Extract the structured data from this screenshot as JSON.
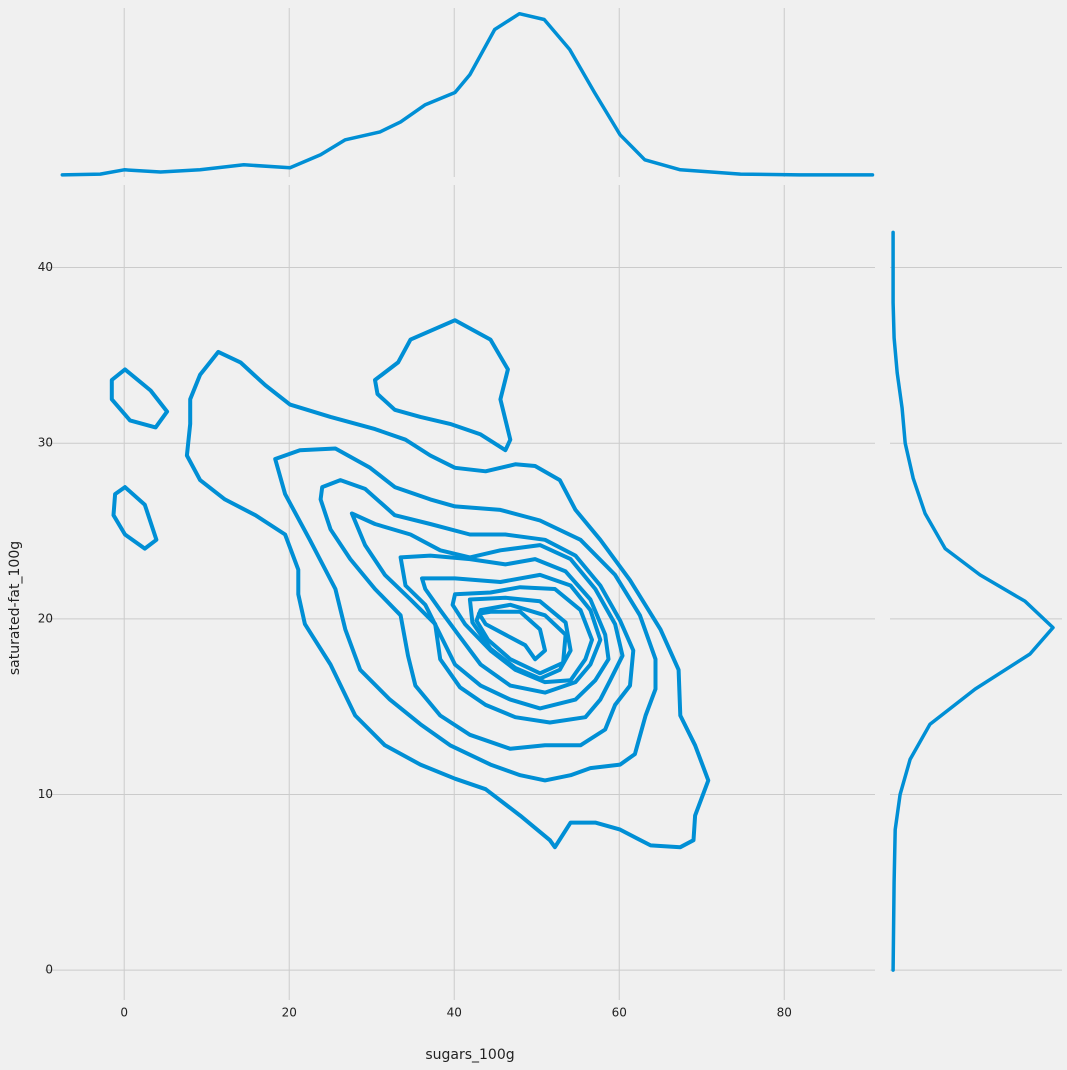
{
  "chart_data": {
    "type": "kde-joint",
    "color": "#008fd5",
    "grid": true,
    "x_label": "sugars_100g",
    "y_label": "saturated-fat_100g",
    "xlim": [
      -9.6,
      91.0
    ],
    "ylim": [
      -1.7,
      44.7
    ],
    "xticks": [
      0,
      20,
      40,
      60,
      80
    ],
    "yticks": [
      0,
      10,
      20,
      30,
      40
    ],
    "contours": [
      {
        "x": [
          8.0,
          8.0,
          9.2,
          11.4,
          14.1,
          17.1,
          20.1,
          25.0,
          30.4,
          34.1,
          37.1,
          40.1,
          43.8,
          47.4,
          49.8,
          52.8,
          54.7,
          57.7,
          61.3,
          65.0,
          67.2,
          67.4,
          69.2,
          70.8,
          69.2,
          69.0,
          67.4,
          63.8,
          60.1,
          57.1,
          54.1,
          52.2,
          51.6,
          48.0,
          43.8,
          40.1,
          35.9,
          31.6,
          28.0,
          25.0,
          21.9,
          21.1,
          21.1,
          19.5,
          15.9,
          12.2,
          9.2,
          7.6
        ],
        "y": [
          31.1,
          32.5,
          33.9,
          35.2,
          34.6,
          33.3,
          32.2,
          31.5,
          30.8,
          30.2,
          29.3,
          28.6,
          28.4,
          28.8,
          28.7,
          27.9,
          26.2,
          24.5,
          22.2,
          19.4,
          17.1,
          14.5,
          12.8,
          10.8,
          8.8,
          7.4,
          7.0,
          7.1,
          8.0,
          8.4,
          8.4,
          7.0,
          7.4,
          8.8,
          10.3,
          10.9,
          11.7,
          12.8,
          14.5,
          17.4,
          19.7,
          21.4,
          22.8,
          24.8,
          25.9,
          26.8,
          27.9,
          29.3
        ]
      },
      {
        "x": [
          18.3,
          21.3,
          25.6,
          29.8,
          32.8,
          37.1,
          40.1,
          45.6,
          50.4,
          55.3,
          59.5,
          62.5,
          64.4,
          64.4,
          63.2,
          61.9,
          60.1,
          56.5,
          54.1,
          51.0,
          48.0,
          44.4,
          39.5,
          35.9,
          32.2,
          28.6,
          26.8,
          25.6,
          22.5,
          19.5
        ],
        "y": [
          29.1,
          29.6,
          29.7,
          28.6,
          27.5,
          26.8,
          26.4,
          26.2,
          25.6,
          24.5,
          22.5,
          20.2,
          17.7,
          16.0,
          14.5,
          12.3,
          11.7,
          11.5,
          11.1,
          10.8,
          11.1,
          11.7,
          12.8,
          14.0,
          15.4,
          17.1,
          19.4,
          21.7,
          24.5,
          27.1
        ]
      },
      {
        "x": [
          24.0,
          26.2,
          29.2,
          32.8,
          37.1,
          41.9,
          46.2,
          51.0,
          54.7,
          57.7,
          60.1,
          61.7,
          61.3,
          59.5,
          58.3,
          55.3,
          51.0,
          46.8,
          41.9,
          38.3,
          35.3,
          34.4,
          33.5,
          30.4,
          27.4,
          25.0,
          23.8
        ],
        "y": [
          27.5,
          27.9,
          27.4,
          25.9,
          25.4,
          24.8,
          24.8,
          24.5,
          23.6,
          21.9,
          19.9,
          18.2,
          16.2,
          15.1,
          13.7,
          12.8,
          12.8,
          12.6,
          13.4,
          14.5,
          16.2,
          17.9,
          20.2,
          21.7,
          23.4,
          25.1,
          26.8
        ]
      },
      {
        "x": [
          27.6,
          30.4,
          34.7,
          38.3,
          41.9,
          45.6,
          50.4,
          54.1,
          57.1,
          59.5,
          60.4,
          58.9,
          57.7,
          55.9,
          51.6,
          47.4,
          43.8,
          40.7,
          38.3,
          37.7,
          34.7,
          31.6,
          29.2
        ],
        "y": [
          26.0,
          25.4,
          24.8,
          23.9,
          23.5,
          23.9,
          24.2,
          23.4,
          21.7,
          19.7,
          17.9,
          16.5,
          15.4,
          14.4,
          14.1,
          14.4,
          15.1,
          16.1,
          17.7,
          19.7,
          21.1,
          22.5,
          24.2
        ]
      },
      {
        "x": [
          33.5,
          37.1,
          41.9,
          46.2,
          49.8,
          53.5,
          56.5,
          58.3,
          58.7,
          57.1,
          54.7,
          50.4,
          46.8,
          43.2,
          40.1,
          38.3,
          36.5,
          34.1
        ],
        "y": [
          23.5,
          23.6,
          23.4,
          23.1,
          23.4,
          22.7,
          21.1,
          19.1,
          17.7,
          16.5,
          15.4,
          14.9,
          15.4,
          16.2,
          17.4,
          19.1,
          20.8,
          21.9
        ]
      },
      {
        "x": [
          36.1,
          40.1,
          45.6,
          50.4,
          54.1,
          56.5,
          57.7,
          56.5,
          54.7,
          51.0,
          46.8,
          43.2,
          40.5,
          38.3,
          36.5
        ],
        "y": [
          22.3,
          22.3,
          22.1,
          22.5,
          21.9,
          20.5,
          18.8,
          17.4,
          16.4,
          15.8,
          16.2,
          17.4,
          19.1,
          20.5,
          21.7
        ]
      },
      {
        "x": [
          40.1,
          44.4,
          48.0,
          52.2,
          55.3,
          56.7,
          55.9,
          54.1,
          51.0,
          47.4,
          44.4,
          41.3,
          39.8
        ],
        "y": [
          21.4,
          21.5,
          21.8,
          21.7,
          20.5,
          18.8,
          17.7,
          16.5,
          16.4,
          17.1,
          18.2,
          19.7,
          20.8
        ]
      },
      {
        "x": [
          41.9,
          46.2,
          50.4,
          53.5,
          54.1,
          52.8,
          50.4,
          47.4,
          44.4,
          42.2
        ],
        "y": [
          21.1,
          21.2,
          21.0,
          19.8,
          18.2,
          17.1,
          16.6,
          17.2,
          18.3,
          19.8
        ]
      },
      {
        "x": [
          43.2,
          46.8,
          51.0,
          53.5,
          53.2,
          50.4,
          46.8,
          44.1,
          42.7
        ],
        "y": [
          20.5,
          20.8,
          20.2,
          19.1,
          17.5,
          16.9,
          17.7,
          18.8,
          19.9
        ]
      },
      {
        "x": [
          44.4,
          48.0,
          50.4,
          51.0,
          49.8,
          48.6,
          46.2,
          43.8,
          43.0
        ],
        "y": [
          20.4,
          20.4,
          19.4,
          18.2,
          17.7,
          18.5,
          19.1,
          19.7,
          20.3
        ]
      },
      {
        "x": [
          30.4,
          33.2,
          34.7,
          40.1,
          44.4,
          46.5,
          45.6,
          46.8,
          46.2,
          43.2,
          39.5,
          35.9,
          32.8,
          30.7
        ],
        "y": [
          33.6,
          34.6,
          35.9,
          37.0,
          35.9,
          34.2,
          32.5,
          30.2,
          29.6,
          30.5,
          31.1,
          31.5,
          31.9,
          32.8
        ]
      },
      {
        "x": [
          -1.5,
          0.1,
          3.2,
          5.2,
          3.8,
          0.7,
          -1.5
        ],
        "y": [
          33.6,
          34.2,
          33.0,
          31.8,
          30.9,
          31.3,
          32.5
        ]
      },
      {
        "x": [
          -1.1,
          0.1,
          2.5,
          3.9,
          2.5,
          0.1,
          -1.3
        ],
        "y": [
          27.1,
          27.5,
          26.5,
          24.5,
          24.0,
          24.8,
          25.9
        ]
      }
    ],
    "x_marginal": {
      "ylim": [
        -0.0003,
        0.0233
      ],
      "x": [
        -7.5,
        -2.9,
        0,
        4.4,
        9.2,
        14.5,
        20.1,
        23.8,
        26.8,
        31.0,
        33.5,
        36.5,
        40.1,
        41.9,
        44.9,
        47.9,
        50.9,
        54.0,
        57.0,
        60.1,
        63.1,
        67.4,
        74.7,
        81.9,
        90.7
      ],
      "density": [
        0,
        0.0001,
        0.0007,
        0.0004,
        0.0007,
        0.0014,
        0.001,
        0.0028,
        0.0049,
        0.006,
        0.0074,
        0.0098,
        0.0115,
        0.014,
        0.0203,
        0.0225,
        0.0217,
        0.0175,
        0.0115,
        0.0056,
        0.0021,
        0.0007,
        0.0001,
        0,
        0
      ]
    },
    "y_marginal": {
      "xlim": [
        -0.0012,
        0.0655
      ],
      "y": [
        0,
        5,
        8,
        10,
        12,
        14,
        16,
        18,
        19.5,
        21,
        22.5,
        24,
        26,
        28,
        30,
        32,
        34,
        36,
        38,
        42
      ],
      "density": [
        0,
        0.0004,
        0.0008,
        0.0027,
        0.0066,
        0.0143,
        0.0318,
        0.0531,
        0.062,
        0.0512,
        0.0337,
        0.0202,
        0.0124,
        0.0078,
        0.0047,
        0.0035,
        0.0016,
        0.0004,
        0,
        0
      ]
    }
  }
}
